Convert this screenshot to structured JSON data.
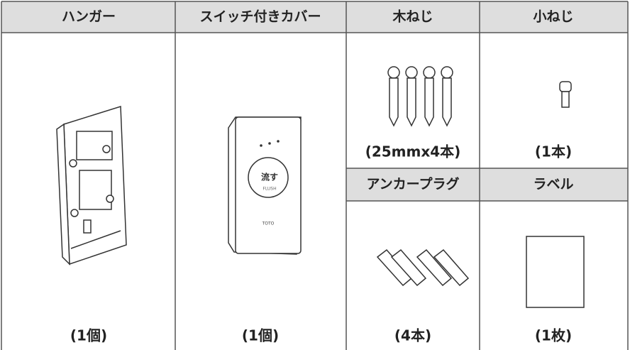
{
  "table": {
    "items": [
      {
        "header": "ハンガー",
        "quantity": "(1個)"
      },
      {
        "header": "スイッチ付きカバー",
        "quantity": "(1個)"
      },
      {
        "header": "木ねじ",
        "quantity": "(25mmx4本)"
      },
      {
        "header": "小ねじ",
        "quantity": "(1本)"
      },
      {
        "header": "アンカープラグ",
        "quantity": "(4本)"
      },
      {
        "header": "ラベル",
        "quantity": "(1枚)"
      }
    ],
    "cover_labels": {
      "button": "流す",
      "button_en": "FLUSH",
      "brand": "TOTO"
    }
  }
}
